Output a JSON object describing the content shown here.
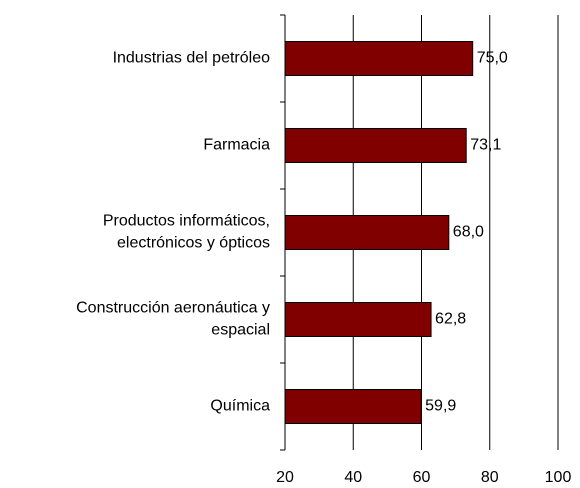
{
  "chart_data": {
    "type": "bar",
    "orientation": "horizontal",
    "categories": [
      [
        "Industrias del petróleo"
      ],
      [
        "Farmacia"
      ],
      [
        "Productos informáticos,",
        "electrónicos y ópticos"
      ],
      [
        "Construcción aeronáutica y",
        "espacial"
      ],
      [
        "Química"
      ]
    ],
    "values": [
      75.0,
      73.1,
      68.0,
      62.8,
      59.9
    ],
    "value_labels": [
      "75,0",
      "73,1",
      "68,0",
      "62,8",
      "59,9"
    ],
    "color": "#800000",
    "xlim": [
      20,
      100
    ],
    "xticks": [
      20,
      40,
      60,
      80,
      100
    ],
    "grid": true
  }
}
